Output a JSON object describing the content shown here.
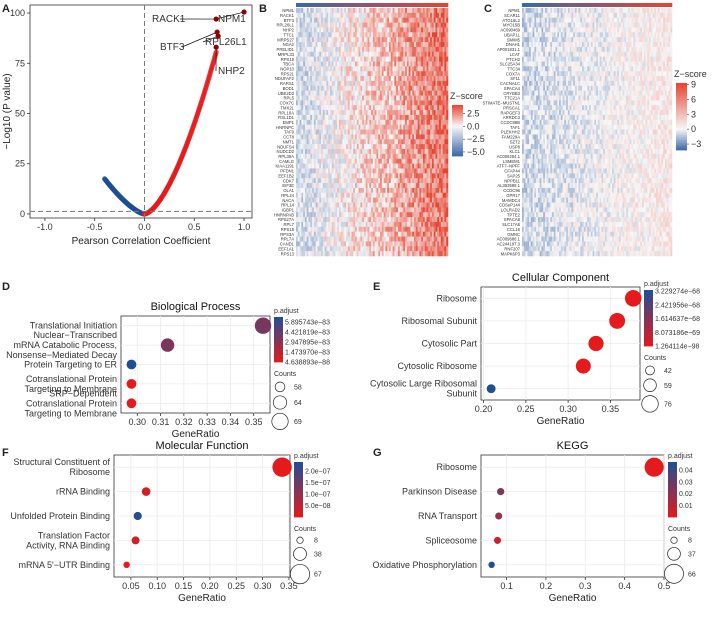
{
  "panel_letters": [
    "A",
    "B",
    "C",
    "D",
    "E",
    "F",
    "G"
  ],
  "chart_data": [
    {
      "id": "A",
      "type": "scatter",
      "title": "",
      "xlabel": "Pearson Correlation Coefficient",
      "ylabel": "−Log10 (P value)",
      "xlim": [
        -1.15,
        1.08
      ],
      "ylim": [
        -2,
        104
      ],
      "xticks": [
        "-1.0",
        "-0.5",
        "0.0",
        "0.5",
        "1.0"
      ],
      "xtick_values": [
        -1.0,
        -0.5,
        0.0,
        0.5,
        1.0
      ],
      "yticks": [
        "0",
        "25",
        "50",
        "75",
        "100"
      ],
      "ytick_values": [
        0,
        25,
        50,
        75,
        100
      ],
      "hline": 1.3,
      "vline": 0.0,
      "negative_curve": {
        "x_min": -0.4,
        "x_max": 0.0,
        "y_at_min": 17.5
      },
      "positive_curve": {
        "x_min": 0.0,
        "x_max": 0.72,
        "y_at_max": 80.5
      },
      "labeled_points": [
        {
          "label": "NPM1",
          "x": 1.0,
          "y": 100.5
        },
        {
          "label": "RACK1",
          "x": 0.72,
          "y": 97.0
        },
        {
          "label": "BTF3",
          "x": 0.73,
          "y": 90.5
        },
        {
          "label": "RPL26L1",
          "x": 0.74,
          "y": 88.5
        },
        {
          "label": "NHP2",
          "x": 0.72,
          "y": 83.0
        }
      ]
    },
    {
      "id": "B",
      "type": "heatmap",
      "legend_title": "Z−score",
      "legend_ticks": [
        "2.5",
        "0.0",
        "−2.5",
        "−5.0"
      ],
      "legend_tick_values": [
        2.5,
        0.0,
        -2.5,
        -5.0
      ],
      "color_range": [
        -5.8,
        4.2
      ],
      "row_labels": [
        "NPM1",
        "RACK1",
        "BTF3",
        "RPL26L1",
        "NHP2",
        "TTC1",
        "MRPS27",
        "NGA2",
        "PRELID1",
        "MRPL33",
        "RPS19",
        "TBCA",
        "NOP10",
        "RPS21",
        "NDUFAF2",
        "RARS1",
        "BOD1",
        "UBE2D3",
        "RPL5",
        "COX7C",
        "TMX2L",
        "RPL10A",
        "RSL1D1",
        "EMP1",
        "HNRNPC",
        "TAF9",
        "CCT8",
        "NMT1",
        "NDUFS4",
        "NUDCD2",
        "RPL35A",
        "CAMLG",
        "KIAA1191",
        "PFDN1",
        "EEF1B2",
        "CDK7",
        "EIF3E",
        "OLA1",
        "RPL24",
        "NACA",
        "RPL14",
        "IGBP1",
        "HNRNPAB",
        "RPS27A",
        "RPL7",
        "RPS18",
        "RPS3A",
        "RPL7A",
        "CAND1",
        "EEF1A1",
        "RPS13"
      ]
    },
    {
      "id": "C",
      "type": "heatmap",
      "legend_title": "Z−score",
      "legend_ticks": [
        "9",
        "6",
        "3",
        "0",
        "−3"
      ],
      "legend_tick_values": [
        9,
        6,
        3,
        0,
        -3
      ],
      "color_range": [
        -4.2,
        9.3
      ],
      "row_labels": [
        "NPM1",
        "SCAR11",
        "ATG16L2",
        "MYO15B",
        "AC090469",
        "UBAP1L",
        "SMIM5",
        "DNAH1",
        "AP001831.1",
        "LCAT",
        "PTCH2",
        "SLC25A34",
        "TTC34",
        "COX7A",
        "SF11",
        "CACNA1C",
        "SPACA4",
        "CRYBB3",
        "TTC21A",
        "STIMATE−MUSTN1",
        "PRSCA1",
        "RAPGEF3",
        "ARRDC3",
        "CCDC88B",
        "TAF1",
        "PLEKHH2",
        "FAM229A",
        "SZT2",
        "USP8",
        "KLC1",
        "AC006254.1",
        "LSMEM1",
        "ATF7−NPFF",
        "CFAP44",
        "SAP25",
        "NPPB11",
        "AL353588.1",
        "CCDC96",
        "GPR17",
        "MAMDC4",
        "CDSeP144",
        "LOLRAD2",
        "TPTE2",
        "SPACA8",
        "SLC17A8",
        "CCL16",
        "GMNC",
        "AC009686.1",
        "AC244197.3",
        "RNF207",
        "MAPK6P3"
      ]
    },
    {
      "id": "D",
      "type": "scatter",
      "title": "Biological Process",
      "xlabel": "GeneRatio",
      "xlim": [
        0.293,
        0.357
      ],
      "xticks": [
        "0.30",
        "0.31",
        "0.32",
        "0.33",
        "0.34",
        "0.35"
      ],
      "xtick_values": [
        0.3,
        0.31,
        0.32,
        0.33,
        0.34,
        0.35
      ],
      "categories": [
        "Translational Initiation",
        "Nuclear−Transcribed mRNA Catabolic Process, Nonsense−Mediated Decay",
        "Protein Targeting to ER",
        "Cotranslational Protein Targeting to Membrane",
        "SRP−Dependent Cotranslational Protein Targeting to Membrane"
      ],
      "category_lines": [
        [
          "Translational Initiation"
        ],
        [
          "Nuclear−Transcribed",
          "mRNA Catabolic Process,",
          "Nonsense−Mediated Decay"
        ],
        [
          "Protein Targeting to ER"
        ],
        [
          "Cotranslational Protein",
          "Targeting to Membrane"
        ],
        [
          "SRP−Dependent",
          "Cotranslational Protein",
          "Targeting to Membrane"
        ]
      ],
      "gene_ratio": [
        0.354,
        0.313,
        0.2975,
        0.2975,
        0.2975
      ],
      "counts": [
        69,
        64,
        58,
        58,
        58
      ],
      "p_adjust": [
        3.7e-83,
        3.5e-83,
        6.6e-83,
        2e-87,
        2e-87
      ],
      "legend_title": "p.adjust",
      "color_ticks": [
        "5.895743e−83",
        "4.421819e−83",
        "2.947895e−83",
        "1.473970e−83",
        "4.638893e−88"
      ],
      "color_tick_values": [
        5.895743e-83,
        4.421819e-83,
        2.947895e-83,
        1.47397e-83,
        4.638893e-88
      ],
      "color_range": [
        4.638893e-88,
        6.6e-83
      ],
      "size_title": "Counts",
      "size_ticks": [
        "58",
        "64",
        "69"
      ],
      "size_tick_values": [
        58,
        64,
        69
      ],
      "size_range": [
        55,
        70
      ]
    },
    {
      "id": "E",
      "type": "scatter",
      "title": "Cellular Component",
      "xlabel": "GeneRatio",
      "xlim": [
        0.197,
        0.385
      ],
      "xticks": [
        "0.20",
        "0.25",
        "0.30",
        "0.35"
      ],
      "xtick_values": [
        0.2,
        0.25,
        0.3,
        0.35
      ],
      "categories": [
        "Ribosome",
        "Ribosomal Subunit",
        "Cytosolic Part",
        "Cytosolic Ribosome",
        "Cytosolic Large Ribosomal Subunit"
      ],
      "category_lines": [
        [
          "Ribosome"
        ],
        [
          "Ribosomal Subunit"
        ],
        [
          "Cytosolic Part"
        ],
        [
          "Cytosolic Ribosome"
        ],
        [
          "Cytosolic Large Ribosomal",
          "Subunit"
        ]
      ],
      "gene_ratio": [
        0.377,
        0.358,
        0.333,
        0.318,
        0.209
      ],
      "counts": [
        76,
        73,
        70,
        69,
        42
      ],
      "p_adjust": [
        1.3e-98,
        1.3e-98,
        1.3e-98,
        1.3e-98,
        3.3e-68
      ],
      "legend_title": "p.adjust",
      "color_ticks": [
        "3.229274e−68",
        "2.421956e−68",
        "1.614637e−68",
        "8.073186e−69",
        "1.264114e−98"
      ],
      "color_tick_values": [
        3.229274e-68,
        2.421956e-68,
        1.614637e-68,
        8.073186e-69,
        1.264114e-98
      ],
      "color_range": [
        1.264114e-98,
        3.3e-68
      ],
      "size_title": "Counts",
      "size_ticks": [
        "42",
        "59",
        "76"
      ],
      "size_tick_values": [
        42,
        59,
        76
      ],
      "size_range": [
        38,
        78
      ]
    },
    {
      "id": "F",
      "type": "scatter",
      "title": "Molecular Function",
      "xlabel": "GeneRatio",
      "xlim": [
        0.018,
        0.352
      ],
      "xticks": [
        "0.05",
        "0.10",
        "0.15",
        "0.20",
        "0.25",
        "0.30",
        "0.35"
      ],
      "xtick_values": [
        0.05,
        0.1,
        0.15,
        0.2,
        0.25,
        0.3,
        0.35
      ],
      "categories": [
        "Structural Constituent of Ribosome",
        "rRNA Binding",
        "Unfolded Protein Binding",
        "Translation Factor Activity, RNA Binding",
        "mRNA 5'−UTR Binding"
      ],
      "category_lines": [
        [
          "Structural Constituent of",
          "Ribosome"
        ],
        [
          "rRNA Binding"
        ],
        [
          "Unfolded Protein Binding"
        ],
        [
          "Translation Factor",
          "Activity, RNA Binding"
        ],
        [
          "mRNA 5'−UTR Binding"
        ]
      ],
      "gene_ratio": [
        0.337,
        0.079,
        0.063,
        0.059,
        0.042
      ],
      "counts": [
        67,
        18,
        16,
        15,
        8
      ],
      "p_adjust": [
        1e-09,
        2e-08,
        2.3e-07,
        3e-08,
        1e-09
      ],
      "legend_title": "p.adjust",
      "color_ticks": [
        "2.0e−07",
        "1.5e−07",
        "1.0e−07",
        "5.0e−08"
      ],
      "color_tick_values": [
        2e-07,
        1.5e-07,
        1e-07,
        5e-08
      ],
      "color_range": [
        1e-09,
        2.4e-07
      ],
      "size_title": "Counts",
      "size_ticks": [
        "8",
        "38",
        "67"
      ],
      "size_tick_values": [
        8,
        38,
        67
      ],
      "size_range": [
        6,
        70
      ]
    },
    {
      "id": "G",
      "type": "scatter",
      "title": "KEGG",
      "xlabel": "GeneRatio",
      "xlim": [
        0.035,
        0.5
      ],
      "xticks": [
        "0.1",
        "0.2",
        "0.3",
        "0.4",
        "0.5"
      ],
      "xtick_values": [
        0.1,
        0.2,
        0.3,
        0.4,
        0.5
      ],
      "categories": [
        "Ribosome",
        "Parkinson Disease",
        "RNA Transport",
        "Spliceosome",
        "Oxidative Phosphorylation"
      ],
      "category_lines": [
        [
          "Ribosome"
        ],
        [
          "Parkinson Disease"
        ],
        [
          "RNA Transport"
        ],
        [
          "Spliceosome"
        ],
        [
          "Oxidative Phosphorylation"
        ]
      ],
      "gene_ratio": [
        0.475,
        0.085,
        0.08,
        0.077,
        0.062
      ],
      "counts": [
        66,
        12,
        11,
        11,
        8
      ],
      "p_adjust": [
        0.0001,
        0.024,
        0.017,
        0.006,
        0.046
      ],
      "legend_title": "p.adjust",
      "color_ticks": [
        "0.04",
        "0.03",
        "0.02",
        "0.01"
      ],
      "color_tick_values": [
        0.04,
        0.03,
        0.02,
        0.01
      ],
      "color_range": [
        0.0,
        0.047
      ],
      "size_title": "Counts",
      "size_ticks": [
        "8",
        "37",
        "66"
      ],
      "size_tick_values": [
        8,
        37,
        66
      ],
      "size_range": [
        6,
        70
      ]
    }
  ],
  "colors": {
    "red": "#e41a1c",
    "blue": "#1f4e96",
    "grid": "#ebebeb",
    "dash": "#777777",
    "heat_high": "#e6432f",
    "heat_mid": "#f7f7f7",
    "heat_low": "#3b68a8"
  }
}
